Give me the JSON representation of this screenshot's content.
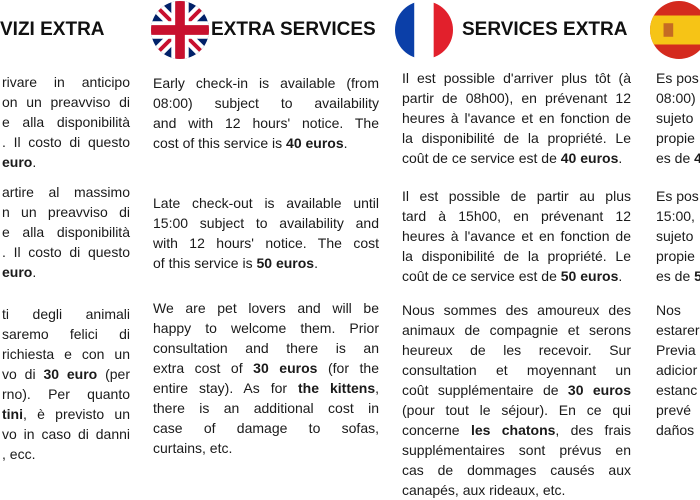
{
  "headers": {
    "italian": "VIZI EXTRA",
    "english": "EXTRA SERVICES",
    "french": "SERVICES EXTRA"
  },
  "flags": {
    "english": "uk-flag-icon",
    "french": "france-flag-icon",
    "spanish": "spain-flag-icon"
  },
  "columns": {
    "italian": [
      [
        [
          {
            "t": "rivare in anticipo"
          }
        ],
        [
          {
            "t": "on un preavviso di"
          }
        ],
        [
          {
            "t": "e alla disponibilità"
          }
        ],
        [
          {
            "t": ". Il costo di questo"
          }
        ],
        [
          {
            "t": "euro",
            "b": true
          },
          {
            "t": "."
          }
        ]
      ],
      [
        [
          {
            "t": "artire al massimo"
          }
        ],
        [
          {
            "t": "n un preavviso di"
          }
        ],
        [
          {
            "t": "e alla disponibilità"
          }
        ],
        [
          {
            "t": ". Il costo di questo"
          }
        ],
        [
          {
            "t": "euro",
            "b": true
          },
          {
            "t": "."
          }
        ]
      ],
      [
        [
          {
            "t": "ti degli animali"
          }
        ],
        [
          {
            "t": "saremo felici di"
          }
        ],
        [
          {
            "t": "richiesta e con un"
          }
        ],
        [
          {
            "t": "vo di "
          },
          {
            "t": "30 euro",
            "b": true
          },
          {
            "t": " (per"
          }
        ],
        [
          {
            "t": "rno). Per quanto"
          }
        ],
        [
          {
            "t": "tini",
            "b": true
          },
          {
            "t": ", è previsto un"
          }
        ],
        [
          {
            "t": "vo in caso di danni"
          }
        ],
        [
          {
            "t": ", ecc."
          }
        ]
      ]
    ],
    "english": [
      [
        [
          {
            "t": "Early check-in is available (from"
          }
        ],
        [
          {
            "t": "08:00) subject to availability"
          }
        ],
        [
          {
            "t": "and with 12 hours' notice. The"
          }
        ],
        [
          {
            "t": "cost of this service is "
          },
          {
            "t": "40 euros",
            "b": true
          },
          {
            "t": "."
          }
        ]
      ],
      [
        [
          {
            "t": "Late check-out is available until"
          }
        ],
        [
          {
            "t": "15:00 subject to availability and"
          }
        ],
        [
          {
            "t": "with 12 hours' notice. The cost"
          }
        ],
        [
          {
            "t": "of this service is "
          },
          {
            "t": "50 euros",
            "b": true
          },
          {
            "t": "."
          }
        ]
      ],
      [
        [
          {
            "t": "We are pet lovers and will be"
          }
        ],
        [
          {
            "t": "happy to welcome them. Prior"
          }
        ],
        [
          {
            "t": "consultation and there is an"
          }
        ],
        [
          {
            "t": "extra cost of "
          },
          {
            "t": "30 euros",
            "b": true
          },
          {
            "t": " (for the"
          }
        ],
        [
          {
            "t": "entire stay). As for "
          },
          {
            "t": "the kittens",
            "b": true
          },
          {
            "t": ","
          }
        ],
        [
          {
            "t": "there is an additional cost in"
          }
        ],
        [
          {
            "t": "case of damage to sofas,"
          }
        ],
        [
          {
            "t": "curtains, etc."
          }
        ]
      ]
    ],
    "french": [
      [
        [
          {
            "t": "Il est possible d'arriver plus tôt (à"
          }
        ],
        [
          {
            "t": "partir de 08h00), en prévenant 12"
          }
        ],
        [
          {
            "t": "heures à l'avance et en fonction de"
          }
        ],
        [
          {
            "t": "la disponibilité de la propriété. Le"
          }
        ],
        [
          {
            "t": "coût de ce service est de "
          },
          {
            "t": "40 euros",
            "b": true
          },
          {
            "t": "."
          }
        ]
      ],
      [
        [
          {
            "t": "Il est possible de partir au plus"
          }
        ],
        [
          {
            "t": "tard à 15h00, en prévenant 12"
          }
        ],
        [
          {
            "t": "heures à l'avance et en fonction de"
          }
        ],
        [
          {
            "t": "la disponibilité de la propriété. Le"
          }
        ],
        [
          {
            "t": "coût de ce service est de "
          },
          {
            "t": "50 euros",
            "b": true
          },
          {
            "t": "."
          }
        ]
      ],
      [
        [
          {
            "t": "Nous sommes des amoureux des"
          }
        ],
        [
          {
            "t": "animaux de compagnie et serons"
          }
        ],
        [
          {
            "t": "heureux de les recevoir. Sur"
          }
        ],
        [
          {
            "t": "consultation et moyennant un"
          }
        ],
        [
          {
            "t": "coût supplémentaire de "
          },
          {
            "t": "30 euros",
            "b": true
          }
        ],
        [
          {
            "t": "(pour tout le séjour). En ce qui"
          }
        ],
        [
          {
            "t": "concerne "
          },
          {
            "t": "les chatons",
            "b": true
          },
          {
            "t": ", des frais"
          }
        ],
        [
          {
            "t": "supplémentaires sont prévus en"
          }
        ],
        [
          {
            "t": "cas de dommages causés aux"
          }
        ],
        [
          {
            "t": "canapés, aux rideaux, etc."
          }
        ]
      ]
    ],
    "spanish": [
      [
        [
          {
            "t": "Es pos"
          }
        ],
        [
          {
            "t": "08:00)"
          }
        ],
        [
          {
            "t": "sujeto"
          }
        ],
        [
          {
            "t": "propie"
          }
        ],
        [
          {
            "t": "es de "
          },
          {
            "t": "4",
            "b": true
          }
        ]
      ],
      [
        [
          {
            "t": "Es pos"
          }
        ],
        [
          {
            "t": "15:00,"
          }
        ],
        [
          {
            "t": "sujeto"
          }
        ],
        [
          {
            "t": "propie"
          }
        ],
        [
          {
            "t": "es de "
          },
          {
            "t": "5",
            "b": true
          }
        ]
      ],
      [
        [
          {
            "t": "Nos"
          }
        ],
        [
          {
            "t": "estarer"
          }
        ],
        [
          {
            "t": "Previa"
          }
        ],
        [
          {
            "t": "adicior"
          }
        ],
        [
          {
            "t": "estanc"
          }
        ],
        [
          {
            "t": "prevé"
          }
        ],
        [
          {
            "t": "daños"
          }
        ]
      ]
    ]
  }
}
